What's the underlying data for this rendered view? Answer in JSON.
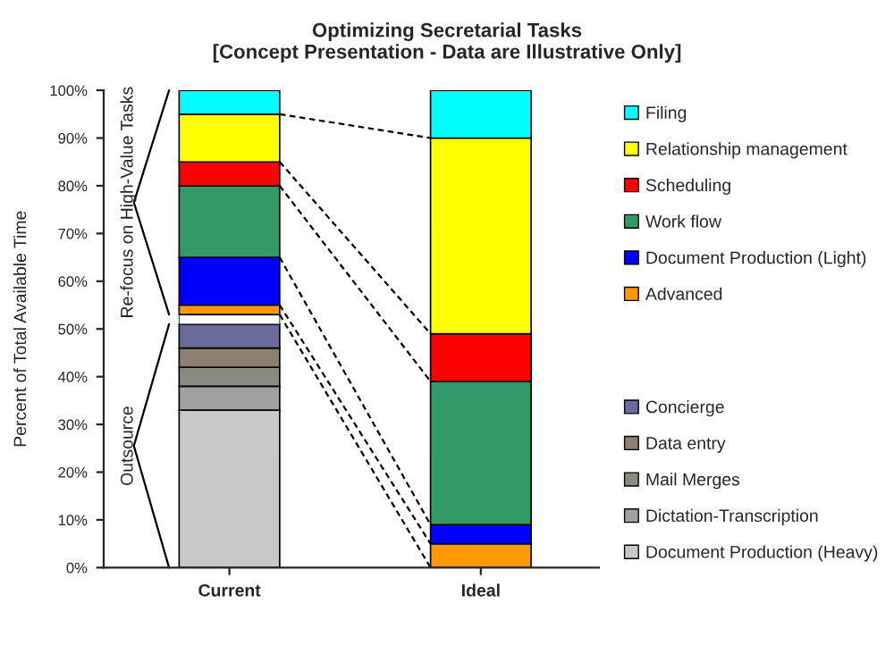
{
  "chart_data": {
    "type": "bar",
    "stacked": true,
    "title": "Optimizing Secretarial Tasks\n[Concept Presentation - Data are Illustrative Only]",
    "ylabel": "Percent of Total Available Time",
    "categories": [
      "Current",
      "Ideal"
    ],
    "series": [
      {
        "name": "Document Production (Heavy)",
        "color": "#c8c8c8",
        "values": [
          33,
          0
        ]
      },
      {
        "name": "Dictation-Transcription",
        "color": "#a0a0a0",
        "values": [
          5,
          0
        ]
      },
      {
        "name": "Mail Merges",
        "color": "#8a8a80",
        "values": [
          4,
          0
        ]
      },
      {
        "name": "Data entry",
        "color": "#8c8070",
        "values": [
          4,
          0
        ]
      },
      {
        "name": "Concierge",
        "color": "#6b6b9b",
        "values": [
          5,
          0
        ]
      },
      {
        "color": "#ffffff",
        "values": [
          2,
          0
        ]
      },
      {
        "name": "Advanced",
        "color": "#ff9900",
        "values": [
          2,
          5
        ]
      },
      {
        "name": "Document Production (Light)",
        "color": "#0000ff",
        "values": [
          10,
          4
        ]
      },
      {
        "name": "Work flow",
        "color": "#339966",
        "values": [
          15,
          30
        ]
      },
      {
        "name": "Scheduling",
        "color": "#ff0000",
        "values": [
          5,
          10
        ]
      },
      {
        "name": "Relationship management",
        "color": "#ffff00",
        "values": [
          10,
          41
        ]
      },
      {
        "name": "Filing",
        "color": "#00ffff",
        "values": [
          5,
          10
        ]
      }
    ],
    "ylim": [
      0,
      100
    ],
    "yticks": [
      {
        "value": 0,
        "label": "0%"
      },
      {
        "value": 10,
        "label": "10%"
      },
      {
        "value": 20,
        "label": "20%"
      },
      {
        "value": 30,
        "label": "30%"
      },
      {
        "value": 40,
        "label": "40%"
      },
      {
        "value": 50,
        "label": "50%"
      },
      {
        "value": 60,
        "label": "60%"
      },
      {
        "value": 70,
        "label": "70%"
      },
      {
        "value": 80,
        "label": "80%"
      },
      {
        "value": 90,
        "label": "90%"
      },
      {
        "value": 100,
        "label": "100%"
      }
    ],
    "annotations": [
      "Re-focus on High-Value Tasks",
      "Outsource"
    ],
    "legend": "right",
    "grid": false
  }
}
